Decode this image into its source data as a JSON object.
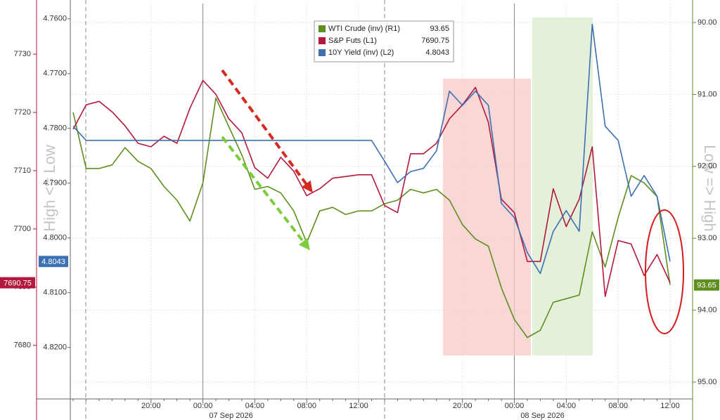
{
  "chart_data": {
    "type": "line",
    "categories": [
      null,
      null,
      null,
      null,
      null,
      null,
      "20:00",
      null,
      null,
      null,
      "00:00",
      null,
      null,
      null,
      "04:00",
      null,
      null,
      null,
      "08:00",
      null,
      null,
      null,
      "12:00",
      null,
      null,
      null,
      null,
      null,
      null,
      null,
      "20:00",
      null,
      null,
      null,
      "00:00",
      null,
      null,
      null,
      "04:00",
      null,
      null,
      null,
      "08:00",
      null,
      null,
      null,
      "12:00"
    ],
    "dates": [
      "07 Sep 2026",
      "08 Sep 2026"
    ],
    "axis_titles": {
      "left": "High <= Low",
      "right": "Low => High"
    },
    "ylim": [
      7670.8,
      7738.7
    ],
    "yticks": [
      7680,
      7690,
      7700,
      7710,
      7720,
      7730
    ],
    "y3lim": [
      4.8294,
      4.7572
    ],
    "y3ticks": [
      {
        "value": 4.76,
        "label": "4.7600"
      },
      {
        "value": 4.77,
        "label": "4.7700"
      },
      {
        "value": 4.78,
        "label": "4.7800"
      },
      {
        "value": 4.79,
        "label": "4.7900"
      },
      {
        "value": 4.8,
        "label": "4.8000"
      },
      {
        "value": 4.81,
        "label": "4.8100"
      },
      {
        "value": 4.82,
        "label": "4.8200"
      }
    ],
    "y2lim": [
      95.234,
      89.736
    ],
    "y2ticks": [
      {
        "value": 90,
        "label": "90.00"
      },
      {
        "value": 91,
        "label": "91.00"
      },
      {
        "value": 92,
        "label": "92.00"
      },
      {
        "value": 93,
        "label": "93.00"
      },
      {
        "value": 94,
        "label": "94.00"
      },
      {
        "value": 95,
        "label": "95.00"
      }
    ],
    "grid": true,
    "series": [
      {
        "name": "WTI Crude (inv) (R1)",
        "color": "#5e8f1c",
        "axis": "y2",
        "values": [
          91.25,
          92.03,
          92.03,
          91.98,
          91.74,
          91.93,
          92.03,
          92.28,
          92.47,
          92.76,
          92.23,
          91.05,
          91.45,
          91.84,
          92.32,
          92.28,
          92.37,
          92.62,
          93.06,
          92.62,
          92.57,
          92.67,
          92.62,
          92.62,
          92.52,
          92.47,
          92.32,
          92.37,
          92.32,
          92.47,
          92.81,
          93.01,
          93.11,
          93.69,
          94.13,
          94.38,
          94.28,
          93.89,
          93.84,
          93.79,
          92.91,
          93.4,
          92.71,
          92.13,
          92.23,
          92.42,
          93.65
        ]
      },
      {
        "name": "S&P Futs (L1)",
        "color": "#b3193c",
        "axis": "y",
        "values": [
          7717.1,
          7721.3,
          7721.9,
          7720.1,
          7717.7,
          7714.7,
          7714.1,
          7715.9,
          7714.7,
          7720.7,
          7725.5,
          7723.1,
          7718.9,
          7716.5,
          7710.5,
          7708.7,
          7712.3,
          7709.9,
          7705.7,
          7706.9,
          7708.7,
          7709.0,
          7709.3,
          7709.3,
          7704.0,
          7702.8,
          7712.9,
          7712.9,
          7714.7,
          7718.9,
          7721.3,
          7724.3,
          7718.3,
          7705.1,
          7702.8,
          7694.4,
          7694.4,
          7706.9,
          7700.4,
          7705.1,
          7714.1,
          7688.4,
          7698.0,
          7697.4,
          7692.0,
          7695.6,
          7690.75
        ]
      },
      {
        "name": "10Y Yield (inv) (L2)",
        "color": "#3b70b2",
        "axis": "y3",
        "values": [
          4.7796,
          4.7822,
          4.7822,
          4.7822,
          4.7822,
          4.7822,
          4.7822,
          4.7822,
          4.7822,
          4.7822,
          4.7822,
          4.7822,
          4.7822,
          4.7822,
          4.7822,
          4.7822,
          4.7822,
          4.7822,
          4.7822,
          4.7822,
          4.7822,
          4.7822,
          4.7822,
          4.7822,
          4.786,
          4.7899,
          4.7879,
          4.7873,
          4.7841,
          4.7732,
          4.7758,
          4.7732,
          4.7758,
          4.7937,
          4.7963,
          4.8027,
          4.8065,
          4.7988,
          4.795,
          4.7988,
          4.761,
          4.7796,
          4.7822,
          4.7924,
          4.7886,
          4.7924,
          4.8043
        ]
      }
    ]
  }
}
